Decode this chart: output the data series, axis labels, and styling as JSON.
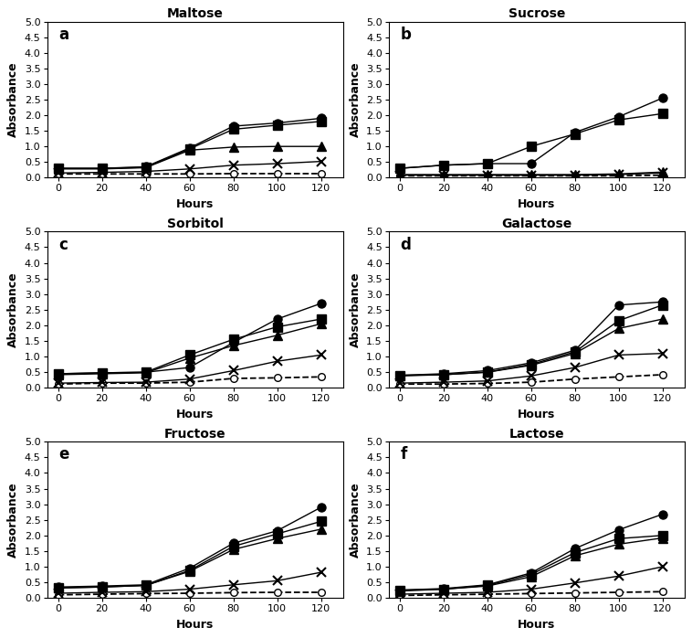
{
  "hours": [
    0,
    20,
    40,
    60,
    80,
    100,
    120
  ],
  "panels": [
    {
      "title": "Maltose",
      "label": "a",
      "M1": [
        0.3,
        0.3,
        0.35,
        0.95,
        1.65,
        1.75,
        1.9
      ],
      "M2": [
        0.3,
        0.3,
        0.33,
        0.92,
        1.55,
        1.68,
        1.8
      ],
      "M3": [
        0.28,
        0.28,
        0.32,
        0.88,
        0.98,
        1.0,
        1.0
      ],
      "M4": [
        0.15,
        0.17,
        0.2,
        0.28,
        0.4,
        0.45,
        0.52
      ],
      "M0": [
        0.12,
        0.12,
        0.12,
        0.12,
        0.13,
        0.13,
        0.13
      ]
    },
    {
      "title": "Sucrose",
      "label": "b",
      "M1": [
        0.3,
        0.4,
        0.45,
        0.45,
        1.45,
        1.95,
        2.55
      ],
      "M2": [
        0.3,
        0.4,
        0.45,
        1.0,
        1.4,
        1.85,
        2.05
      ],
      "M3": [
        0.1,
        0.1,
        0.1,
        0.1,
        0.1,
        0.12,
        0.18
      ],
      "M4": [
        0.08,
        0.08,
        0.08,
        0.08,
        0.08,
        0.1,
        0.15
      ],
      "M0": [
        0.06,
        0.06,
        0.06,
        0.06,
        0.06,
        0.06,
        0.08
      ]
    },
    {
      "title": "Sorbitol",
      "label": "c",
      "M1": [
        0.45,
        0.48,
        0.5,
        0.65,
        1.45,
        2.2,
        2.7
      ],
      "M2": [
        0.45,
        0.48,
        0.5,
        1.05,
        1.55,
        1.95,
        2.2
      ],
      "M3": [
        0.42,
        0.45,
        0.48,
        0.95,
        1.35,
        1.68,
        2.05
      ],
      "M4": [
        0.15,
        0.17,
        0.18,
        0.28,
        0.55,
        0.85,
        1.05
      ],
      "M0": [
        0.12,
        0.15,
        0.15,
        0.18,
        0.3,
        0.32,
        0.35
      ]
    },
    {
      "title": "Galactose",
      "label": "d",
      "M1": [
        0.4,
        0.45,
        0.55,
        0.8,
        1.2,
        2.65,
        2.75
      ],
      "M2": [
        0.4,
        0.42,
        0.5,
        0.75,
        1.15,
        2.15,
        2.65
      ],
      "M3": [
        0.38,
        0.42,
        0.5,
        0.72,
        1.1,
        1.9,
        2.2
      ],
      "M4": [
        0.15,
        0.18,
        0.22,
        0.38,
        0.65,
        1.05,
        1.1
      ],
      "M0": [
        0.12,
        0.12,
        0.14,
        0.18,
        0.28,
        0.35,
        0.42
      ]
    },
    {
      "title": "Fructose",
      "label": "e",
      "M1": [
        0.35,
        0.38,
        0.42,
        0.95,
        1.75,
        2.15,
        2.9
      ],
      "M2": [
        0.32,
        0.35,
        0.4,
        0.88,
        1.65,
        2.05,
        2.45
      ],
      "M3": [
        0.32,
        0.35,
        0.4,
        0.85,
        1.55,
        1.9,
        2.2
      ],
      "M4": [
        0.15,
        0.18,
        0.2,
        0.28,
        0.42,
        0.55,
        0.82
      ],
      "M0": [
        0.1,
        0.12,
        0.14,
        0.15,
        0.17,
        0.18,
        0.18
      ]
    },
    {
      "title": "Lactose",
      "label": "f",
      "M1": [
        0.25,
        0.3,
        0.42,
        0.8,
        1.58,
        2.18,
        2.68
      ],
      "M2": [
        0.25,
        0.28,
        0.4,
        0.75,
        1.45,
        1.9,
        2.0
      ],
      "M3": [
        0.22,
        0.28,
        0.38,
        0.68,
        1.35,
        1.72,
        1.92
      ],
      "M4": [
        0.12,
        0.15,
        0.18,
        0.28,
        0.48,
        0.7,
        1.0
      ],
      "M0": [
        0.08,
        0.1,
        0.12,
        0.14,
        0.16,
        0.18,
        0.2
      ]
    }
  ],
  "ylim": [
    0.0,
    5.0
  ],
  "yticks": [
    0.0,
    0.5,
    1.0,
    1.5,
    2.0,
    2.5,
    3.0,
    3.5,
    4.0,
    4.5,
    5.0
  ],
  "xlabel": "Hours",
  "ylabel": "Absorbance",
  "bg_color": "#ffffff"
}
